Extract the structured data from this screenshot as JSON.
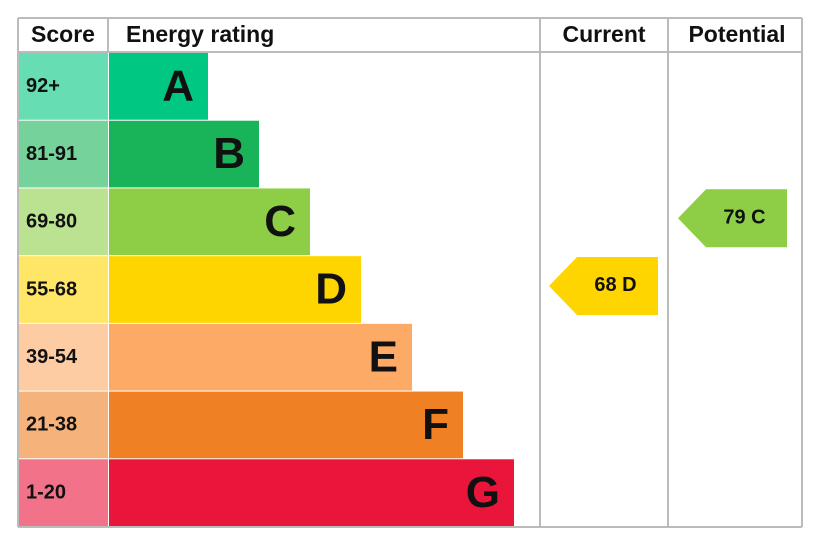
{
  "header": {
    "score": "Score",
    "rating": "Energy rating",
    "current": "Current",
    "potential": "Potential"
  },
  "bands": [
    {
      "score": "92+",
      "letter": "A",
      "color": "#00c781"
    },
    {
      "score": "81-91",
      "letter": "B",
      "color": "#19b459"
    },
    {
      "score": "69-80",
      "letter": "C",
      "color": "#8dce46"
    },
    {
      "score": "55-68",
      "letter": "D",
      "color": "#ffd500"
    },
    {
      "score": "39-54",
      "letter": "E",
      "color": "#fcaa65"
    },
    {
      "score": "21-38",
      "letter": "F",
      "color": "#ef8023"
    },
    {
      "score": "1-20",
      "letter": "G",
      "color": "#e9153b"
    }
  ],
  "current": {
    "score": 68,
    "rating": "D"
  },
  "potential": {
    "score": 79,
    "rating": "C"
  }
}
